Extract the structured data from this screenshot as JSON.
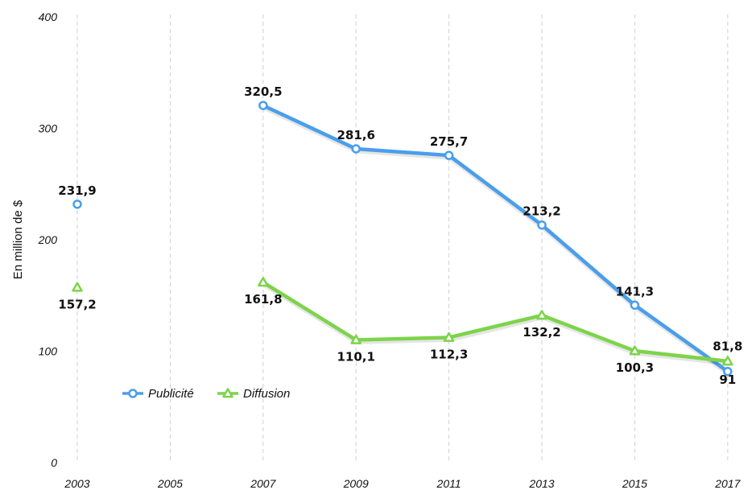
{
  "chart_data": {
    "type": "line",
    "ylabel": "En million de $",
    "ylim": [
      0,
      400
    ],
    "yticks": [
      "0",
      "100",
      "200",
      "300",
      "400"
    ],
    "categories": [
      "2003",
      "2005",
      "2007",
      "2009",
      "2011",
      "2013",
      "2015",
      "2017"
    ],
    "grid": "vertical dashed",
    "legend_position": "bottom-left",
    "series": [
      {
        "name": "Publicité",
        "color": "#4a9eec",
        "marker": "circle",
        "values": [
          231.9,
          null,
          320.5,
          281.6,
          275.7,
          213.2,
          141.3,
          81.8
        ],
        "labels": [
          "231,9",
          "",
          "320,5",
          "281,6",
          "275,7",
          "213,2",
          "141,3",
          "81,8"
        ]
      },
      {
        "name": "Diffusion",
        "color": "#7dd44a",
        "marker": "triangle",
        "values": [
          157.2,
          null,
          161.8,
          110.1,
          112.3,
          132.2,
          100.3,
          91
        ],
        "labels": [
          "157,2",
          "",
          "161,8",
          "110,1",
          "112,3",
          "132,2",
          "100,3",
          "91"
        ]
      }
    ]
  }
}
